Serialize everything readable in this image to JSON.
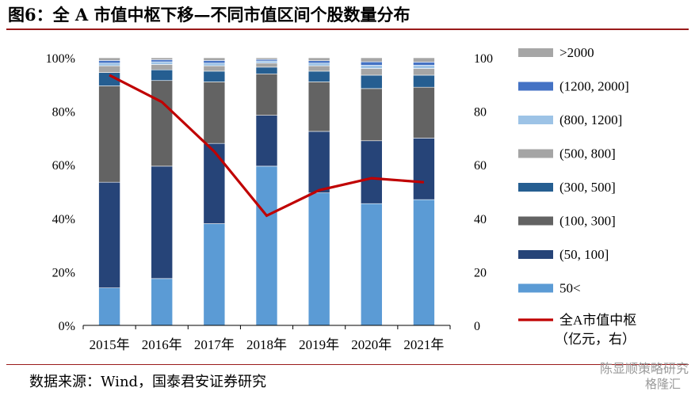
{
  "header": {
    "title": "图6：全 A 市值中枢下移—不同市值区间个股数量分布"
  },
  "footer": {
    "source": "数据来源：Wind，国泰君安证券研究",
    "watermark": "陈显顺策略研究",
    "watermark_brand": "格隆汇"
  },
  "chart_data": {
    "type": "bar",
    "stacked": true,
    "categories": [
      "2015年",
      "2016年",
      "2017年",
      "2018年",
      "2019年",
      "2020年",
      "2021年"
    ],
    "y_left": {
      "ticks": [
        "0%",
        "20%",
        "40%",
        "60%",
        "80%",
        "100%"
      ],
      "ylim": [
        0,
        100
      ]
    },
    "y_right": {
      "ticks": [
        "0",
        "20",
        "40",
        "60",
        "80",
        "100"
      ],
      "ylim": [
        0,
        100
      ]
    },
    "series": [
      {
        "name": "50<",
        "color": "#5b9bd5",
        "values": [
          14,
          17.5,
          38,
          59.5,
          49.5,
          45.5,
          47
        ]
      },
      {
        "name": "(50, 100]",
        "color": "#264478",
        "values": [
          39.5,
          42,
          30,
          19,
          23,
          23.5,
          23
        ]
      },
      {
        "name": "(100, 300]",
        "color": "#636363",
        "values": [
          36,
          32,
          23,
          15.5,
          18.5,
          19.5,
          19
        ]
      },
      {
        "name": "(300, 500]",
        "color": "#255e91",
        "values": [
          5,
          4,
          4,
          2.5,
          4,
          5,
          4.5
        ]
      },
      {
        "name": "(500, 800]",
        "color": "#a5a5a5",
        "values": [
          2.5,
          2,
          2,
          1.5,
          2,
          2.5,
          2.5
        ]
      },
      {
        "name": "(800, 1200]",
        "color": "#9dc3e6",
        "values": [
          1,
          1,
          1,
          0.8,
          1,
          1.2,
          1.2
        ]
      },
      {
        "name": "(1200, 2000]",
        "color": "#4472c4",
        "values": [
          1,
          0.8,
          1,
          0.6,
          0.9,
          1.3,
          1.2
        ]
      },
      {
        "name": ">2000",
        "color": "#a6a6a6",
        "values": [
          1,
          0.7,
          1,
          0.6,
          1.1,
          1.5,
          1.6
        ]
      }
    ],
    "line": {
      "name": "全A市值中枢（亿元，右）",
      "color": "#c00000",
      "axis": "right",
      "values": [
        93.5,
        83.5,
        65,
        41,
        50.5,
        55,
        53.5
      ]
    },
    "legend_position": "right"
  }
}
